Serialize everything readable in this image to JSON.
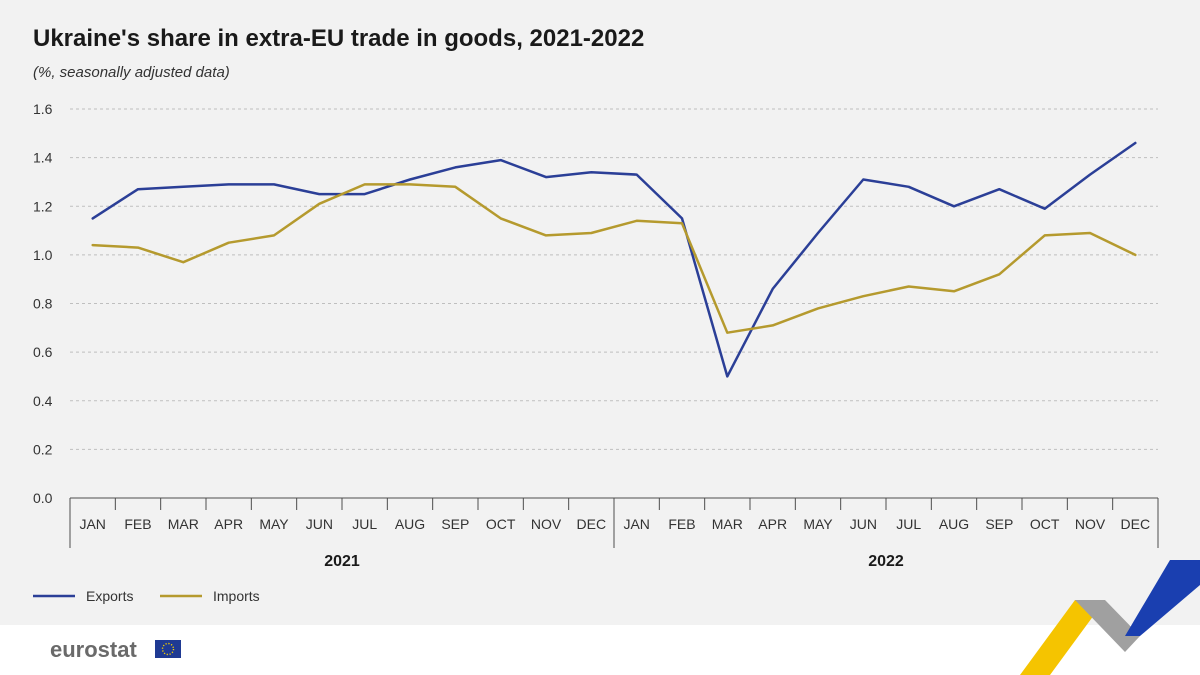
{
  "brand": {
    "name": "eurostat",
    "colors": {
      "exports": "#2b3f97",
      "imports": "#b59a2e",
      "flag": "#1f3a93",
      "star": "#f5d000",
      "ribbon_yellow": "#f5c400",
      "ribbon_blue": "#1a3fb0",
      "ribbon_grey": "#a0a0a0"
    }
  },
  "chart_data": {
    "type": "line",
    "title": "Ukraine's share in extra-EU trade in goods, 2021-2022",
    "subtitle": "(%, seasonally adjusted data)",
    "xlabel": "",
    "ylabel": "",
    "ylim": [
      0,
      1.6
    ],
    "yticks": [
      "0.0",
      "0.2",
      "0.4",
      "0.6",
      "0.8",
      "1.0",
      "1.2",
      "1.4",
      "1.6"
    ],
    "grid": true,
    "legend_position": "bottom-left",
    "categories": [
      "JAN",
      "FEB",
      "MAR",
      "APR",
      "MAY",
      "JUN",
      "JUL",
      "AUG",
      "SEP",
      "OCT",
      "NOV",
      "DEC",
      "JAN",
      "FEB",
      "MAR",
      "APR",
      "MAY",
      "JUN",
      "JUL",
      "AUG",
      "SEP",
      "OCT",
      "NOV",
      "DEC"
    ],
    "groups": [
      {
        "label": "2021",
        "count": 12
      },
      {
        "label": "2022",
        "count": 12
      }
    ],
    "series": [
      {
        "name": "Exports",
        "values": [
          1.15,
          1.27,
          1.28,
          1.29,
          1.29,
          1.25,
          1.25,
          1.31,
          1.36,
          1.39,
          1.32,
          1.34,
          1.33,
          1.15,
          0.5,
          0.86,
          1.09,
          1.31,
          1.28,
          1.2,
          1.27,
          1.19,
          1.33,
          1.46
        ]
      },
      {
        "name": "Imports",
        "values": [
          1.04,
          1.03,
          0.97,
          1.05,
          1.08,
          1.21,
          1.29,
          1.29,
          1.28,
          1.15,
          1.08,
          1.09,
          1.14,
          1.13,
          0.68,
          0.71,
          0.78,
          0.83,
          0.87,
          0.85,
          0.92,
          1.08,
          1.09,
          1.0
        ]
      }
    ]
  }
}
